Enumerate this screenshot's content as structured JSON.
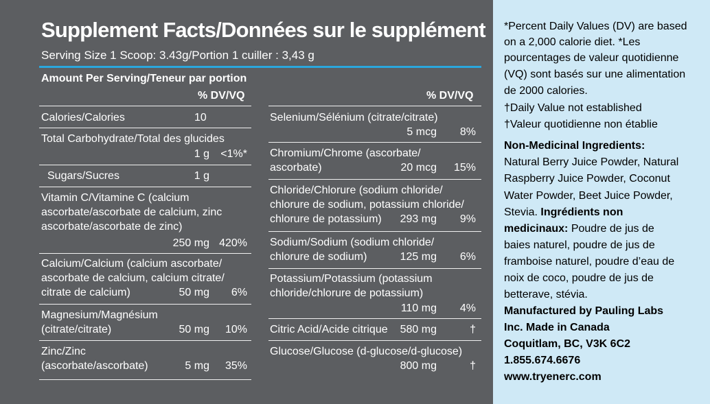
{
  "header": {
    "title": "Supplement Facts/Données sur le supplément",
    "serving": "Serving Size 1 Scoop: 3.43g/Portion 1 cuiller : 3,43 g",
    "amount_per_serving": "Amount Per Serving/Teneur par portion",
    "dv_header": "% DV/VQ"
  },
  "left_rows": {
    "calories": {
      "label": "Calories/Calories",
      "amount": "10"
    },
    "carb": {
      "label": "Total Carbohydrate/Total des glucides",
      "amount": "1 g",
      "dv": "<1%*"
    },
    "sugars": {
      "label": "Sugars/Sucres",
      "amount": "1 g"
    },
    "vitc": {
      "line1": "Vitamin C/Vitamine C (calcium",
      "line2": "ascorbate/ascorbate de calcium, zinc",
      "line3": "ascorbate/ascorbate de zinc)",
      "amount": "250 mg",
      "dv": "420%"
    },
    "calcium": {
      "line1": "Calcium/Calcium (calcium ascorbate/",
      "line2": "ascorbate de calcium, calcium citrate/",
      "line3": "citrate de calcium)",
      "amount": "50 mg",
      "dv": "6%"
    },
    "magnesium": {
      "line1": "Magnesium/Magnésium",
      "line2": "(citrate/citrate)",
      "amount": "50 mg",
      "dv": "10%"
    },
    "zinc": {
      "line1": "Zinc/Zinc",
      "line2": "(ascorbate/ascorbate)",
      "amount": "5 mg",
      "dv": "35%"
    }
  },
  "right_rows": {
    "selenium": {
      "line1": "Selenium/Sélénium (citrate/citrate)",
      "amount": "5 mcg",
      "dv": "8%"
    },
    "chromium": {
      "line1": "Chromium/Chrome (ascorbate/",
      "line2": "ascorbate)",
      "amount": "20 mcg",
      "dv": "15%"
    },
    "chloride": {
      "line1": "Chloride/Chlorure (sodium chloride/",
      "line2": "chlorure de sodium, potassium chloride/",
      "line3": "chlorure de potassium)",
      "amount": "293 mg",
      "dv": "9%"
    },
    "sodium": {
      "line1": "Sodium/Sodium (sodium chloride/",
      "line2": "chlorure de sodium)",
      "amount": "125 mg",
      "dv": "6%"
    },
    "potassium": {
      "line1": "Potassium/Potassium (potassium",
      "line2": "chloride/chlorure de potassium)",
      "amount": "110 mg",
      "dv": "4%"
    },
    "citric": {
      "line1": "Citric Acid/Acide citrique",
      "amount": "580 mg",
      "dv": "†"
    },
    "glucose": {
      "line1": "Glucose/Glucose (d-glucose/d-glucose)",
      "amount": "800 mg",
      "dv": "†"
    }
  },
  "side": {
    "dv_note": [
      "*Percent Daily Values (DV) are based",
      "on a 2,000 calorie diet. *Les",
      "pourcentages de valeur quotidienne",
      "(VQ) sont basés sur une alimentation",
      "de 2000 calories.",
      "†Daily Value not established",
      "†Valeur quotidienne non établie"
    ],
    "nmi_heading": "Non-Medicinal Ingredients:",
    "nmi_lines": [
      "Natural Berry Juice Powder, Natural",
      "Raspberry Juice Powder, Coconut",
      "Water Powder, Beet Juice Powder,"
    ],
    "nmi_last": "Stevia.",
    "inm_heading_1": "Ingrédients non",
    "inm_heading_2": "medicinaux:",
    "inm_first": "Poudre de jus de",
    "inm_lines": [
      "baies naturel, poudre de jus de",
      "framboise naturel, poudre d’eau de",
      "noix de coco, poudre de jus de",
      "betterave, stévia."
    ],
    "mfg_lines": [
      "Manufactured by Pauling Labs",
      "Inc. Made in Canada",
      "Coquitlam, BC, V3K 6C2",
      "1.855.674.6676",
      "www.tryenerc.com"
    ]
  }
}
